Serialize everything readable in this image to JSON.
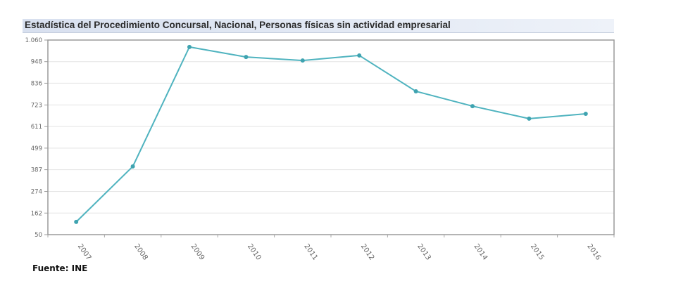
{
  "chart_data": {
    "type": "line",
    "title": "Estadística del Procedimiento Concursal, Nacional, Personas físicas sin actividad empresarial",
    "xlabel": "",
    "ylabel": "",
    "categories": [
      "2007",
      "2008",
      "2009",
      "2010",
      "2011",
      "2012",
      "2013",
      "2014",
      "2015",
      "2016"
    ],
    "series": [
      {
        "name": "Personas físicas sin actividad empresarial",
        "values": [
          116,
          404,
          1024,
          972,
          954,
          980,
          794,
          717,
          652,
          677
        ],
        "color": "#4fb3bf"
      }
    ],
    "ylim": [
      50,
      1060
    ],
    "yticks": [
      50,
      162,
      274,
      387,
      499,
      611,
      723,
      836,
      948,
      1060
    ],
    "ytick_labels": [
      "50",
      "162",
      "274",
      "387",
      "499",
      "611",
      "723",
      "836",
      "948",
      "1.060"
    ],
    "grid": true,
    "legend": "none"
  },
  "source_label": "Fuente: INE"
}
